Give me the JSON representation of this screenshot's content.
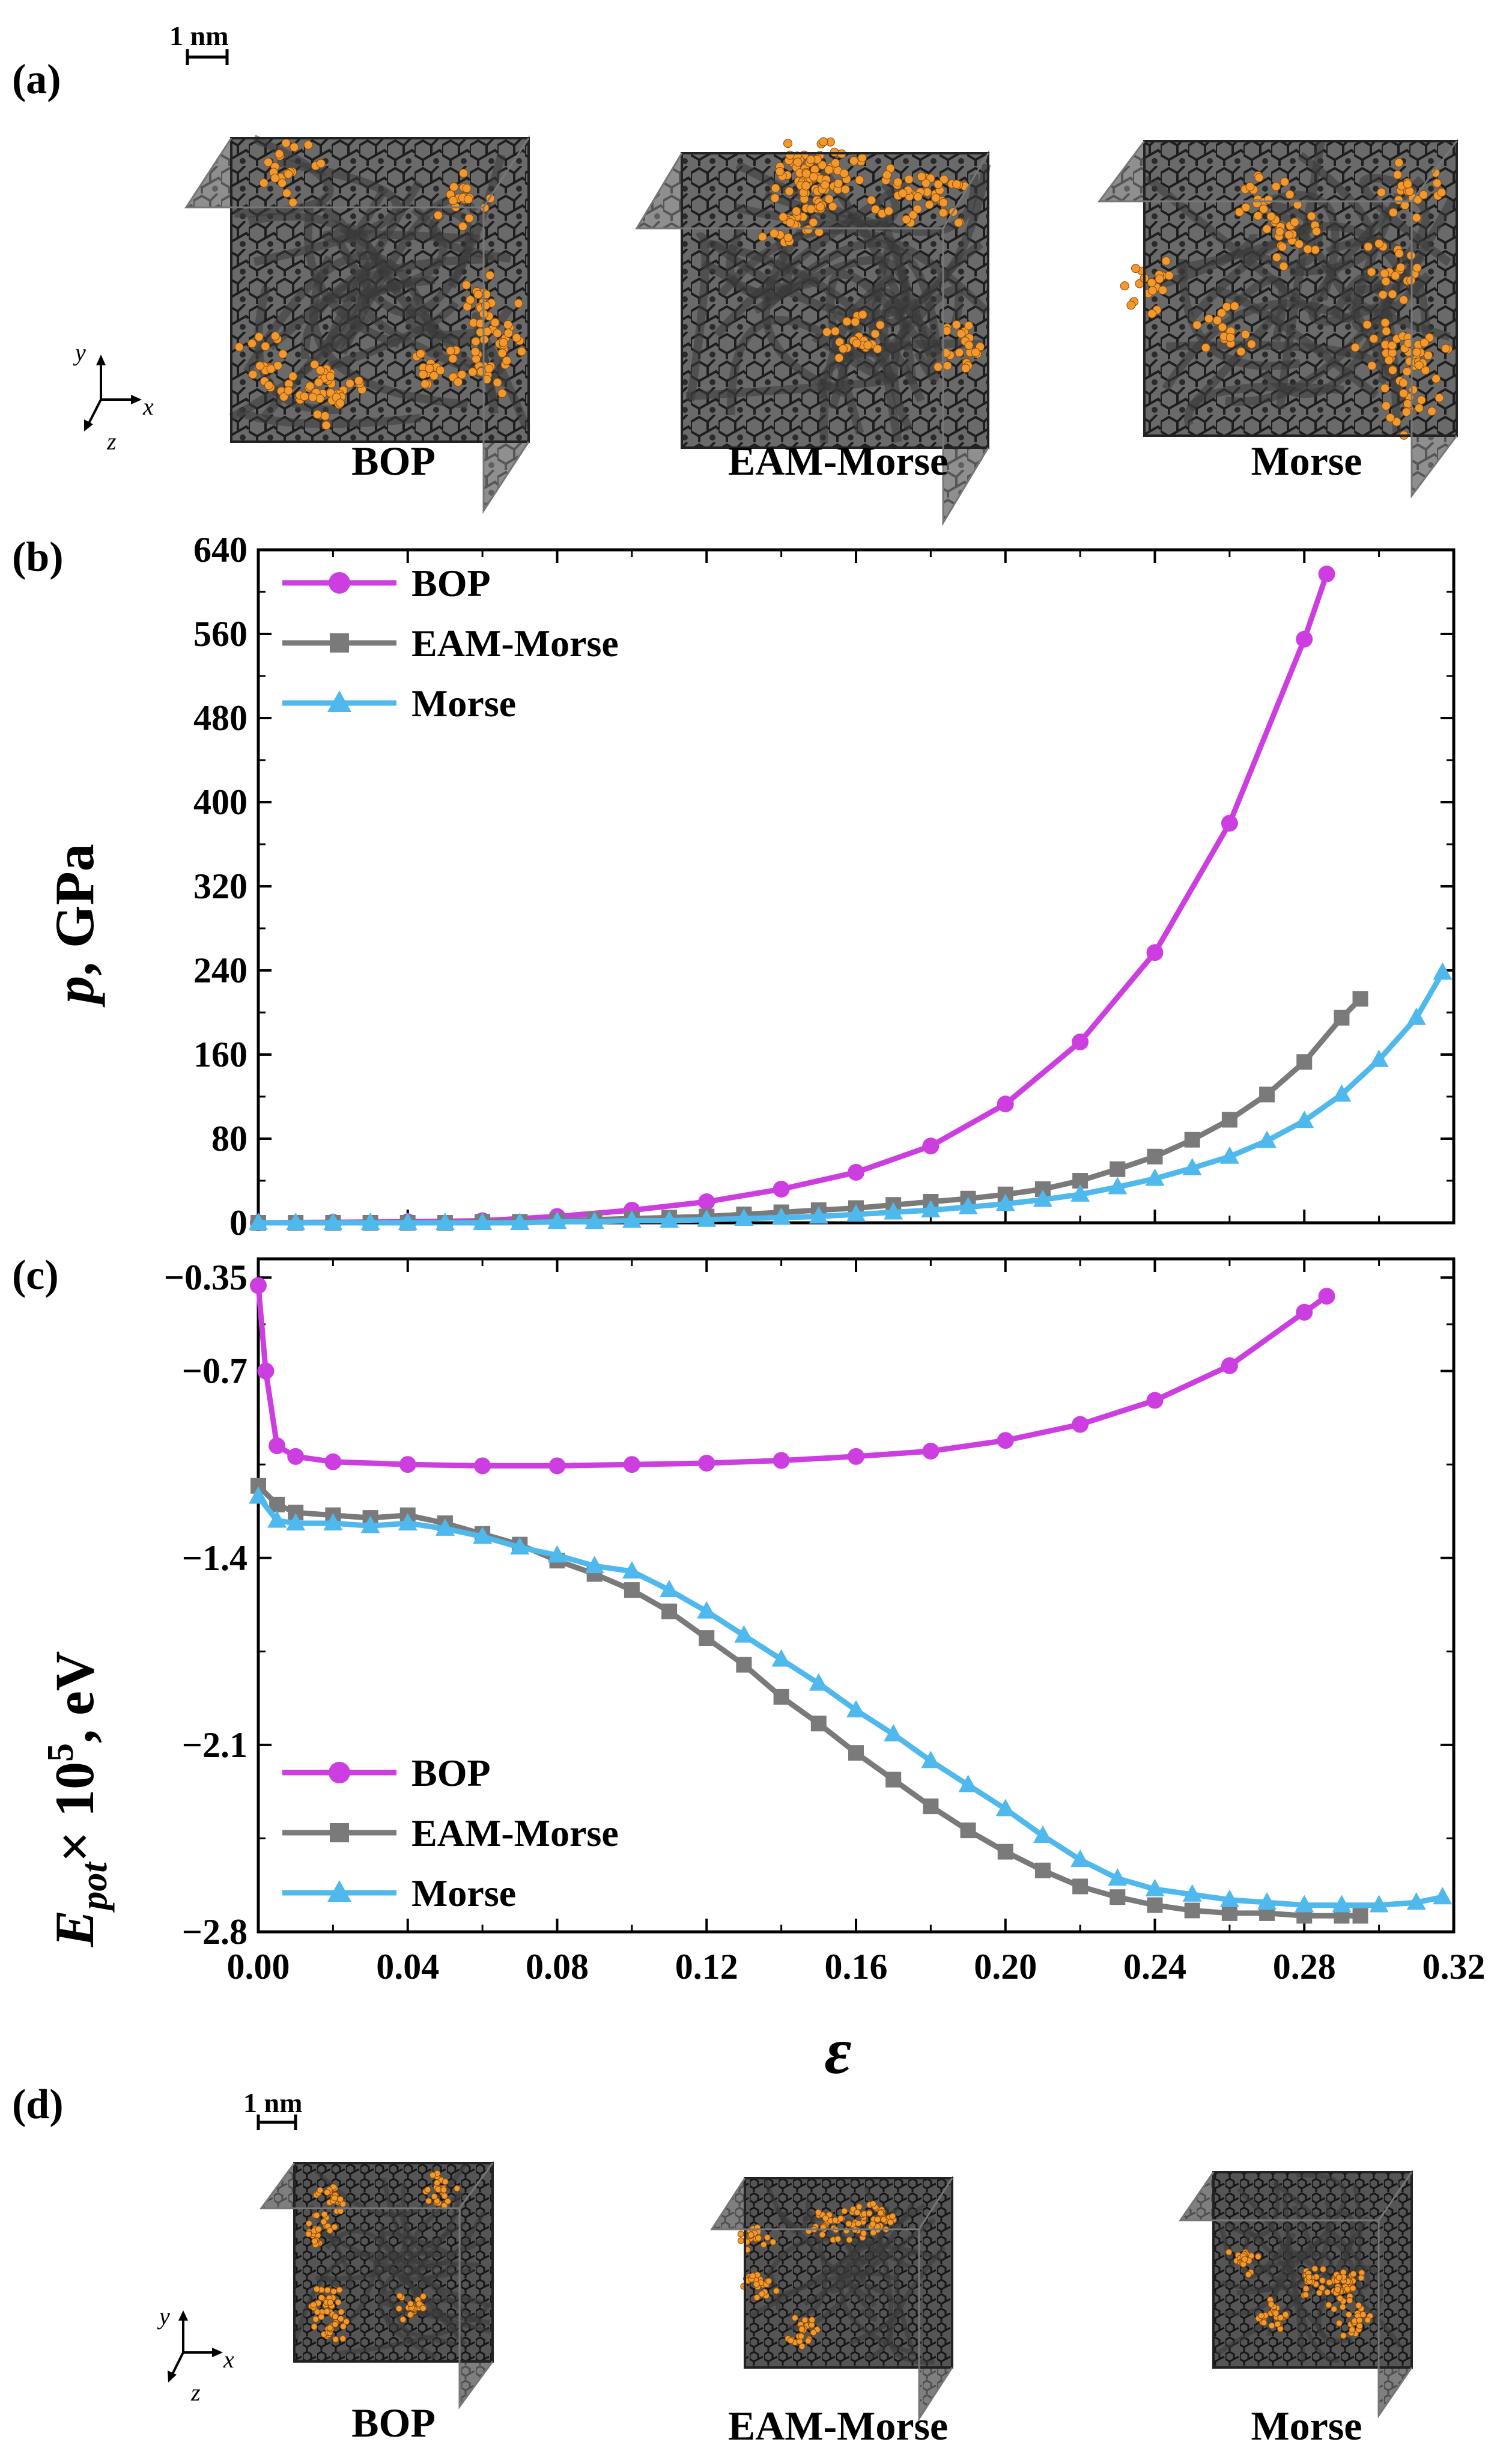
{
  "panels": {
    "a": "(a)",
    "b": "(b)",
    "c": "(c)",
    "d": "(d)"
  },
  "structures_top": {
    "scale_bar": "1 nm",
    "axes": {
      "y": "y",
      "x": "x",
      "z": "z"
    },
    "captions": [
      "BOP",
      "EAM-Morse",
      "Morse"
    ]
  },
  "structures_bottom": {
    "scale_bar": "1 nm",
    "axes": {
      "y": "y",
      "x": "x",
      "z": "z"
    },
    "captions": [
      "BOP",
      "EAM-Morse",
      "Morse"
    ]
  },
  "colors": {
    "BOP": "#cc3ee0",
    "EAM-Morse": "#7a7a7a",
    "Morse": "#4fb8ec",
    "atoms": "#f2992e",
    "carbon": "#3a3a3a"
  },
  "chart_data": [
    {
      "id": "b",
      "type": "line",
      "ylabel": "p, GPa",
      "ylabel_var": "p",
      "ylabel_rest": ", GPa",
      "xlabel": "ε",
      "ylim": [
        0,
        640
      ],
      "xlim": [
        0,
        0.32
      ],
      "yticks": [
        0,
        80,
        160,
        240,
        320,
        400,
        480,
        560,
        640
      ],
      "ytick_labels": [
        "0",
        "80",
        "160",
        "240",
        "320",
        "400",
        "480",
        "560",
        "640"
      ],
      "legend_position": "top-left",
      "series": [
        {
          "name": "BOP",
          "marker": "circle",
          "x": [
            0,
            0.02,
            0.04,
            0.06,
            0.08,
            0.1,
            0.12,
            0.14,
            0.16,
            0.18,
            0.2,
            0.22,
            0.24,
            0.26,
            0.28,
            0.286
          ],
          "y": [
            0,
            0.5,
            1,
            2,
            6,
            12,
            20,
            32,
            48,
            73,
            113,
            172,
            257,
            380,
            555,
            617
          ]
        },
        {
          "name": "EAM-Morse",
          "marker": "square",
          "x": [
            0,
            0.01,
            0.02,
            0.03,
            0.04,
            0.05,
            0.06,
            0.07,
            0.08,
            0.09,
            0.1,
            0.11,
            0.12,
            0.13,
            0.14,
            0.15,
            0.16,
            0.17,
            0.18,
            0.19,
            0.2,
            0.21,
            0.22,
            0.23,
            0.24,
            0.25,
            0.26,
            0.27,
            0.28,
            0.29,
            0.295
          ],
          "y": [
            0,
            0,
            0,
            0,
            0,
            0,
            1,
            1,
            2,
            3,
            4,
            5,
            6,
            8,
            10,
            12,
            14,
            17,
            20,
            23,
            27,
            32,
            40,
            51,
            63,
            79,
            98,
            122,
            153,
            195,
            213
          ]
        },
        {
          "name": "Morse",
          "marker": "triangle",
          "x": [
            0,
            0.01,
            0.02,
            0.03,
            0.04,
            0.05,
            0.06,
            0.07,
            0.08,
            0.09,
            0.1,
            0.11,
            0.12,
            0.13,
            0.14,
            0.15,
            0.16,
            0.17,
            0.18,
            0.19,
            0.2,
            0.21,
            0.22,
            0.23,
            0.24,
            0.25,
            0.26,
            0.27,
            0.28,
            0.29,
            0.3,
            0.31,
            0.317
          ],
          "y": [
            0,
            0,
            0,
            0,
            0,
            0,
            0,
            0,
            1,
            1,
            2,
            2,
            3,
            4,
            5,
            6,
            8,
            10,
            12,
            15,
            18,
            22,
            27,
            34,
            42,
            52,
            63,
            78,
            97,
            122,
            155,
            195,
            238
          ]
        }
      ]
    },
    {
      "id": "c",
      "type": "line",
      "ylabel": "Epot× 105, eV",
      "ylabel_main": "E",
      "ylabel_sub": "pot",
      "ylabel_mid": "× 10",
      "ylabel_sup": "5",
      "ylabel_tail": ", eV",
      "xlabel": "ε",
      "ylim": [
        -2.8,
        -0.28
      ],
      "xlim": [
        0,
        0.32
      ],
      "yticks": [
        -2.8,
        -2.1,
        -1.4,
        -0.7,
        -0.35
      ],
      "ytick_labels": [
        "−2.8",
        "−2.1",
        "−1.4",
        "−0.7",
        "−0.35"
      ],
      "xticks": [
        0,
        0.04,
        0.08,
        0.12,
        0.16,
        0.2,
        0.24,
        0.28,
        0.32
      ],
      "xtick_labels": [
        "0.00",
        "0.04",
        "0.08",
        "0.12",
        "0.16",
        "0.20",
        "0.24",
        "0.28",
        "0.32"
      ],
      "legend_position": "bottom-left",
      "series": [
        {
          "name": "BOP",
          "marker": "circle",
          "x": [
            0,
            0.002,
            0.005,
            0.01,
            0.02,
            0.04,
            0.06,
            0.08,
            0.1,
            0.12,
            0.14,
            0.16,
            0.18,
            0.2,
            0.22,
            0.24,
            0.26,
            0.28,
            0.286
          ],
          "y": [
            -0.38,
            -0.7,
            -0.98,
            -1.02,
            -1.04,
            -1.05,
            -1.055,
            -1.055,
            -1.05,
            -1.045,
            -1.035,
            -1.02,
            -1.0,
            -0.96,
            -0.9,
            -0.81,
            -0.68,
            -0.48,
            -0.42
          ]
        },
        {
          "name": "EAM-Morse",
          "marker": "square",
          "x": [
            0,
            0.005,
            0.01,
            0.02,
            0.03,
            0.04,
            0.05,
            0.06,
            0.07,
            0.08,
            0.09,
            0.1,
            0.11,
            0.12,
            0.13,
            0.14,
            0.15,
            0.16,
            0.17,
            0.18,
            0.19,
            0.2,
            0.21,
            0.22,
            0.23,
            0.24,
            0.25,
            0.26,
            0.27,
            0.28,
            0.29,
            0.295
          ],
          "y": [
            -1.13,
            -1.2,
            -1.23,
            -1.24,
            -1.25,
            -1.24,
            -1.27,
            -1.31,
            -1.35,
            -1.41,
            -1.46,
            -1.52,
            -1.6,
            -1.7,
            -1.8,
            -1.92,
            -2.02,
            -2.13,
            -2.23,
            -2.33,
            -2.42,
            -2.5,
            -2.57,
            -2.63,
            -2.67,
            -2.7,
            -2.72,
            -2.73,
            -2.73,
            -2.74,
            -2.74,
            -2.74
          ]
        },
        {
          "name": "Morse",
          "marker": "triangle",
          "x": [
            0,
            0.005,
            0.01,
            0.02,
            0.03,
            0.04,
            0.05,
            0.06,
            0.07,
            0.08,
            0.09,
            0.1,
            0.11,
            0.12,
            0.13,
            0.14,
            0.15,
            0.16,
            0.17,
            0.18,
            0.19,
            0.2,
            0.21,
            0.22,
            0.23,
            0.24,
            0.25,
            0.26,
            0.27,
            0.28,
            0.29,
            0.3,
            0.31,
            0.317
          ],
          "y": [
            -1.17,
            -1.26,
            -1.27,
            -1.27,
            -1.28,
            -1.27,
            -1.29,
            -1.32,
            -1.36,
            -1.39,
            -1.43,
            -1.45,
            -1.52,
            -1.6,
            -1.69,
            -1.78,
            -1.87,
            -1.97,
            -2.06,
            -2.16,
            -2.25,
            -2.34,
            -2.44,
            -2.53,
            -2.6,
            -2.64,
            -2.66,
            -2.68,
            -2.69,
            -2.7,
            -2.7,
            -2.7,
            -2.69,
            -2.67
          ]
        }
      ]
    }
  ]
}
